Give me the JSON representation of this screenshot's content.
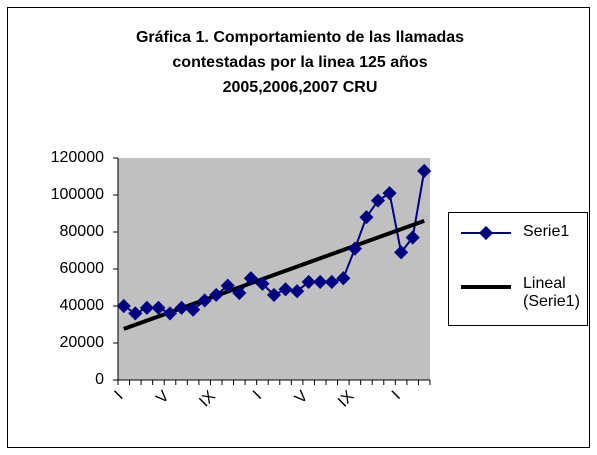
{
  "chart_data": {
    "type": "line",
    "title": [
      "Gráfica 1. Comportamiento de las llamadas",
      "contestadas por la linea 125 años",
      "2005,2006,2007 CRU"
    ],
    "categories": [
      "I",
      null,
      null,
      null,
      "V",
      null,
      null,
      null,
      "IX",
      null,
      null,
      null,
      "I",
      null,
      null,
      null,
      "V",
      null,
      null,
      null,
      "IX",
      null,
      null,
      null,
      "I",
      null,
      null
    ],
    "series": [
      {
        "name": "Serie1",
        "color": "#000080",
        "values": [
          40000,
          36000,
          39000,
          39000,
          36000,
          39000,
          38000,
          43000,
          46000,
          51000,
          47000,
          55000,
          52000,
          46000,
          49000,
          48000,
          53000,
          53000,
          53000,
          55000,
          71000,
          88000,
          97000,
          101000,
          69000,
          77000,
          113000
        ]
      }
    ],
    "trendline": {
      "name": "Lineal (Serie1)",
      "color": "#000000",
      "type": "linear"
    },
    "ylim": [
      0,
      120000
    ],
    "yticks": [
      0,
      20000,
      40000,
      60000,
      80000,
      100000,
      120000
    ],
    "grid": false,
    "plot_background": "#c0c0c0",
    "legend": "right"
  }
}
